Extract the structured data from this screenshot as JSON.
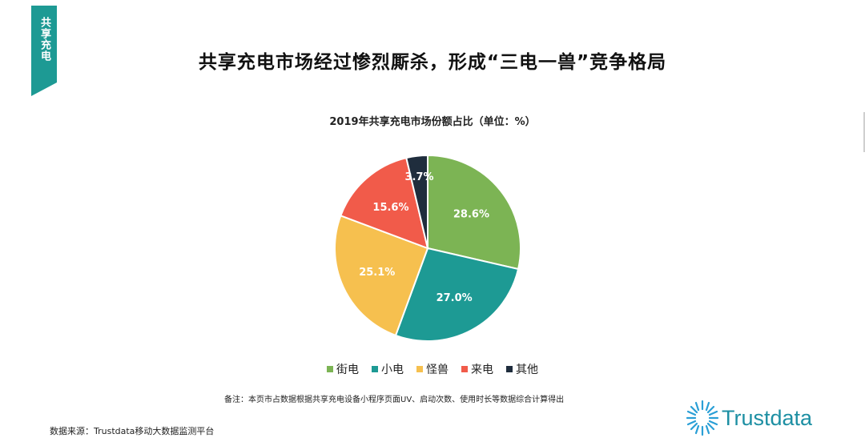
{
  "section_tag": "共享充电",
  "page_title": "共享充电市场经过惨烈厮杀，形成“三电一兽”竞争格局",
  "note": "备注：本页市占数据根据共享充电设备小程序页面UV、启动次数、使用时长等数据综合计算得出",
  "source": "数据来源：Trustdata移动大数据监测平台",
  "brand": "Trustdata",
  "chart_data": {
    "type": "pie",
    "title": "2019年共享充电市场份额占比（单位：%）",
    "slices": [
      {
        "name": "街电",
        "value": 28.6,
        "label": "28.6%",
        "color": "#7cb454"
      },
      {
        "name": "小电",
        "value": 27.0,
        "label": "27.0%",
        "color": "#1d9a94"
      },
      {
        "name": "怪兽",
        "value": 25.1,
        "label": "25.1%",
        "color": "#f6c04f"
      },
      {
        "name": "来电",
        "value": 15.6,
        "label": "15.6%",
        "color": "#f15b4a"
      },
      {
        "name": "其他",
        "value": 3.7,
        "label": "3.7%",
        "color": "#1f2d3d"
      }
    ],
    "start": "12 o'clock",
    "direction": "clockwise",
    "legend_position": "bottom"
  }
}
